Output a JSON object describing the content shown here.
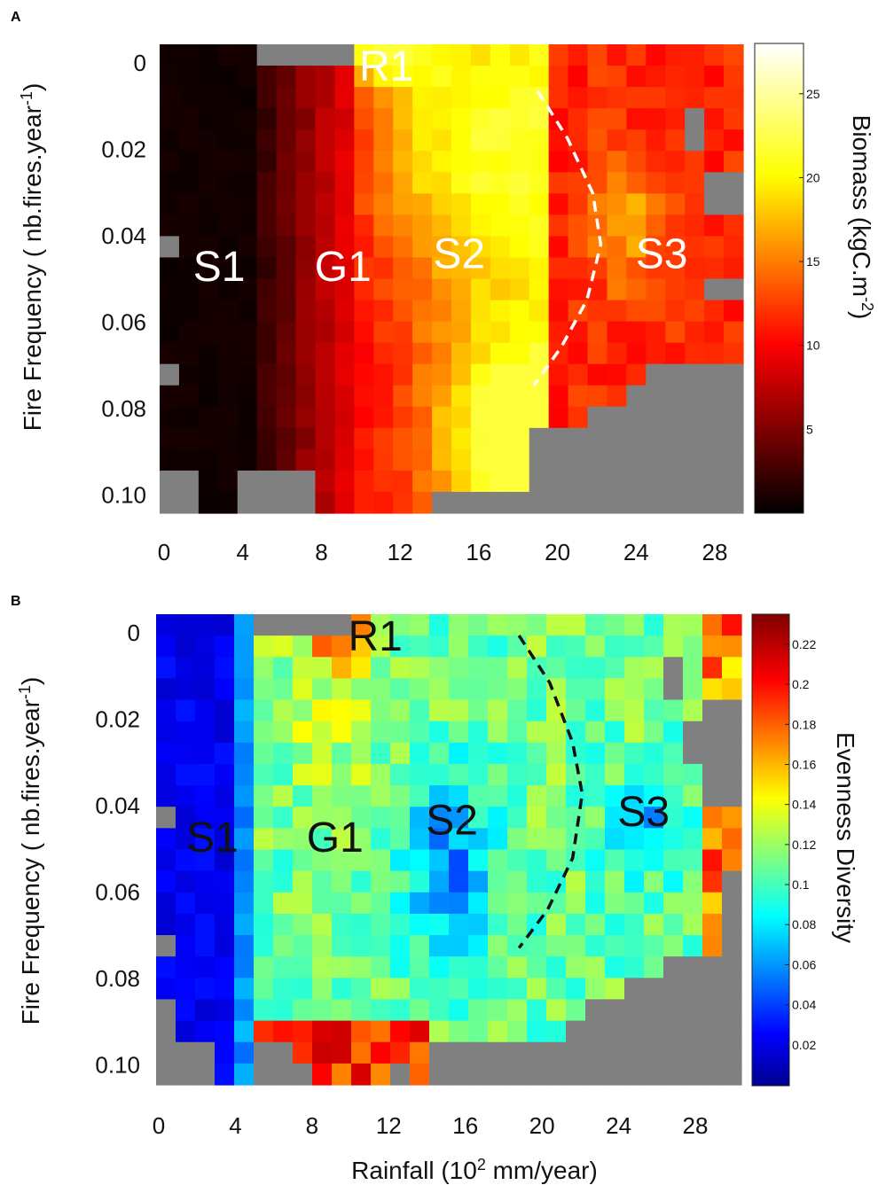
{
  "colors": {
    "nodata": "#808080",
    "annotation_A": "#ffffff",
    "annotation_B": "#111111"
  },
  "chart_data": [
    {
      "panel": "A",
      "type": "heatmap",
      "colormap": "hot",
      "xlabel": "",
      "ylabel": "Fire Frequency ( nb.fires.year",
      "ylabel_sup": "-1",
      "ylabel_end": ")",
      "x_ticks": [
        "0",
        "4",
        "8",
        "12",
        "16",
        "20",
        "24",
        "28"
      ],
      "y_ticks": [
        "0",
        "0.02",
        "0.04",
        "0.06",
        "0.08",
        "0.10"
      ],
      "xlim": [
        0,
        30
      ],
      "ylim": [
        0,
        0.11
      ],
      "colorbar": {
        "label": "Biomass (kgC.m",
        "label_sup": "-2",
        "label_end": ")",
        "ticks": [
          "5",
          "10",
          "15",
          "20",
          "25"
        ],
        "tick_values": [
          5,
          10,
          15,
          20,
          25
        ],
        "range": [
          0,
          28
        ]
      },
      "region_labels": [
        {
          "text": "S1",
          "x": 2.8,
          "y": 0.052
        },
        {
          "text": "G1",
          "x": 9.1,
          "y": 0.052
        },
        {
          "text": "R1",
          "x": 11.3,
          "y": 0.005
        },
        {
          "text": "S2",
          "x": 15.0,
          "y": 0.049
        },
        {
          "text": "S3",
          "x": 25.3,
          "y": 0.049
        }
      ],
      "boundary_line": [
        [
          19.0,
          0.011
        ],
        [
          20.5,
          0.022
        ],
        [
          21.8,
          0.035
        ],
        [
          22.2,
          0.047
        ],
        [
          21.5,
          0.06
        ],
        [
          20.2,
          0.071
        ],
        [
          18.8,
          0.08
        ]
      ]
    },
    {
      "panel": "B",
      "type": "heatmap",
      "colormap": "jet",
      "xlabel": "Rainfall (10",
      "xlabel_sup": "2",
      "xlabel_end": " mm/year)",
      "ylabel": "Fire Frequency ( nb.fires.year",
      "ylabel_sup": "-1",
      "ylabel_end": ")",
      "x_ticks": [
        "0",
        "4",
        "8",
        "12",
        "16",
        "20",
        "24",
        "28"
      ],
      "y_ticks": [
        "0",
        "0.02",
        "0.04",
        "0.06",
        "0.08",
        "0.10"
      ],
      "xlim": [
        0,
        30
      ],
      "ylim": [
        0,
        0.11
      ],
      "colorbar": {
        "label": "Evenness Diversity",
        "ticks": [
          "0.02",
          "0.04",
          "0.06",
          "0.08",
          "0.1",
          "0.12",
          "0.14",
          "0.16",
          "0.18",
          "0.2",
          "0.22"
        ],
        "tick_values": [
          0.02,
          0.04,
          0.06,
          0.08,
          0.1,
          0.12,
          0.14,
          0.16,
          0.18,
          0.2,
          0.22
        ],
        "range": [
          0,
          0.235
        ]
      },
      "region_labels": [
        {
          "text": "S1",
          "x": 2.8,
          "y": 0.052
        },
        {
          "text": "G1",
          "x": 9.2,
          "y": 0.052
        },
        {
          "text": "R1",
          "x": 11.3,
          "y": 0.005
        },
        {
          "text": "S2",
          "x": 15.3,
          "y": 0.048
        },
        {
          "text": "S3",
          "x": 25.3,
          "y": 0.046
        }
      ],
      "boundary_line": [
        [
          18.8,
          0.005
        ],
        [
          20.4,
          0.016
        ],
        [
          21.6,
          0.03
        ],
        [
          22.1,
          0.042
        ],
        [
          21.6,
          0.057
        ],
        [
          20.3,
          0.069
        ],
        [
          18.8,
          0.078
        ]
      ]
    }
  ]
}
